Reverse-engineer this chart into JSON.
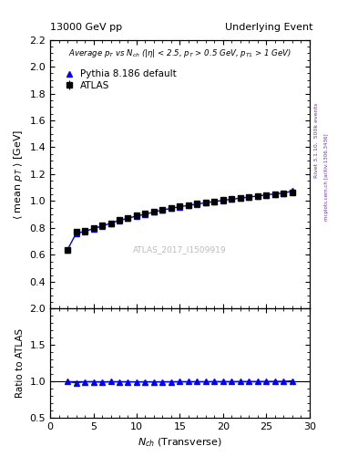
{
  "title_left": "13000 GeV pp",
  "title_right": "Underlying Event",
  "inner_title": "Average $p_T$ vs $N_{ch}$ ($|\\eta|$ < 2.5, $p_T$ > 0.5 GeV, $p_{T1}$ > 1 GeV)",
  "watermark": "ATLAS_2017_I1509919",
  "right_label1": "Rivet 3.1.10,  500k events",
  "right_label2": "mcplots.cern.ch [arXiv:1306.3436]",
  "ylabel_main": "$\\langle$ mean $p_T$ $\\rangle$ [GeV]",
  "ylabel_ratio": "Ratio to ATLAS",
  "xlabel": "$N_{ch}$ (Transverse)",
  "ylim_main": [
    0.2,
    2.2
  ],
  "ylim_ratio": [
    0.5,
    2.0
  ],
  "xlim": [
    0,
    30
  ],
  "yticks_main": [
    0.4,
    0.6,
    0.8,
    1.0,
    1.2,
    1.4,
    1.6,
    1.8,
    2.0,
    2.2
  ],
  "yticks_ratio": [
    0.5,
    1.0,
    1.5,
    2.0
  ],
  "xticks": [
    0,
    5,
    10,
    15,
    20,
    25,
    30
  ],
  "atlas_x": [
    2,
    3,
    4,
    5,
    6,
    7,
    8,
    9,
    10,
    11,
    12,
    13,
    14,
    15,
    16,
    17,
    18,
    19,
    20,
    21,
    22,
    23,
    24,
    25,
    26,
    27,
    28
  ],
  "atlas_y": [
    0.637,
    0.773,
    0.777,
    0.797,
    0.822,
    0.837,
    0.86,
    0.875,
    0.895,
    0.905,
    0.925,
    0.937,
    0.95,
    0.96,
    0.97,
    0.98,
    0.99,
    0.998,
    1.007,
    1.015,
    1.022,
    1.03,
    1.038,
    1.045,
    1.052,
    1.058,
    1.065
  ],
  "atlas_yerr": [
    0.01,
    0.008,
    0.008,
    0.007,
    0.007,
    0.006,
    0.006,
    0.005,
    0.005,
    0.005,
    0.005,
    0.005,
    0.005,
    0.005,
    0.005,
    0.005,
    0.005,
    0.005,
    0.005,
    0.005,
    0.005,
    0.005,
    0.005,
    0.005,
    0.005,
    0.005,
    0.008
  ],
  "pythia_x": [
    2,
    3,
    4,
    5,
    6,
    7,
    8,
    9,
    10,
    11,
    12,
    13,
    14,
    15,
    16,
    17,
    18,
    19,
    20,
    21,
    22,
    23,
    24,
    25,
    26,
    27,
    28
  ],
  "pythia_y": [
    0.637,
    0.76,
    0.775,
    0.795,
    0.815,
    0.835,
    0.857,
    0.872,
    0.89,
    0.902,
    0.92,
    0.933,
    0.947,
    0.958,
    0.968,
    0.978,
    0.988,
    0.997,
    1.006,
    1.014,
    1.022,
    1.03,
    1.038,
    1.046,
    1.054,
    1.06,
    1.075
  ],
  "atlas_color": "black",
  "pythia_color": "blue",
  "ratio_band_color": "#ccff00",
  "background_color": "white"
}
